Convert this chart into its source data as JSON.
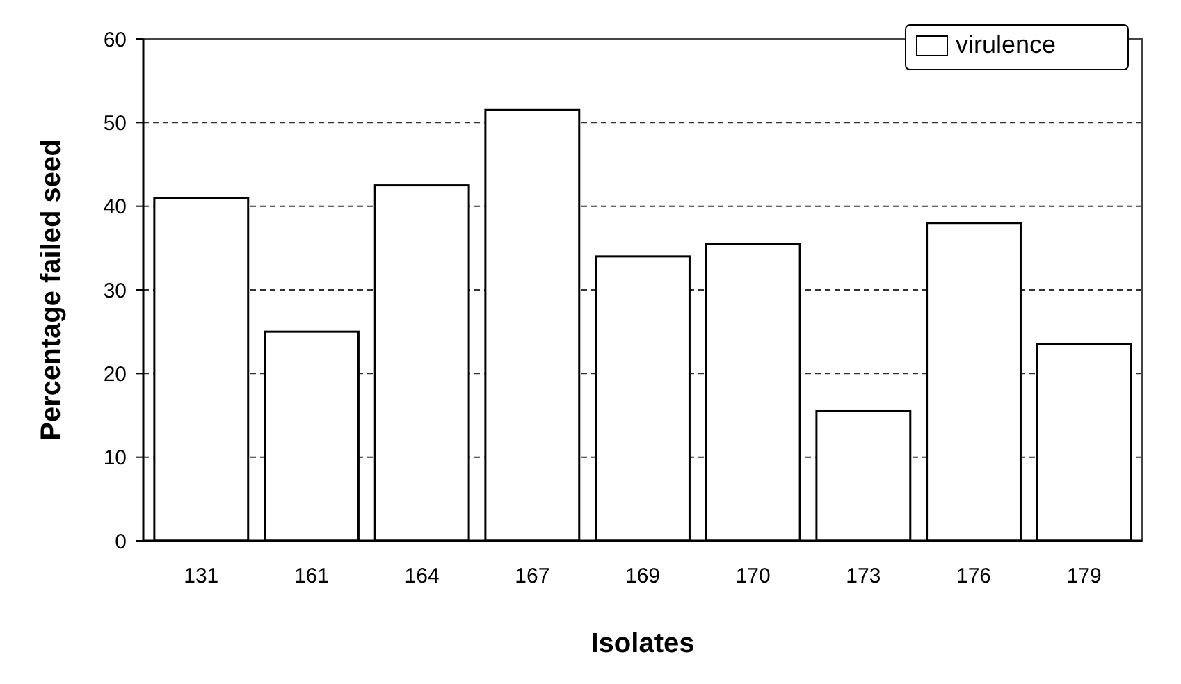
{
  "chart_data": {
    "type": "bar",
    "xlabel": "Isolates",
    "ylabel": "Percentage failed seed",
    "categories": [
      "131",
      "161",
      "164",
      "167",
      "169",
      "170",
      "173",
      "176",
      "179"
    ],
    "series": [
      {
        "name": "virulence",
        "color": "#ffffff",
        "values": [
          41,
          25,
          42.5,
          51.5,
          34,
          35.5,
          15.5,
          38,
          23.5
        ]
      }
    ],
    "ylim": [
      0,
      60
    ],
    "yticks": [
      0,
      10,
      20,
      30,
      40,
      50,
      60
    ],
    "grid": "y",
    "legend": "top right"
  }
}
